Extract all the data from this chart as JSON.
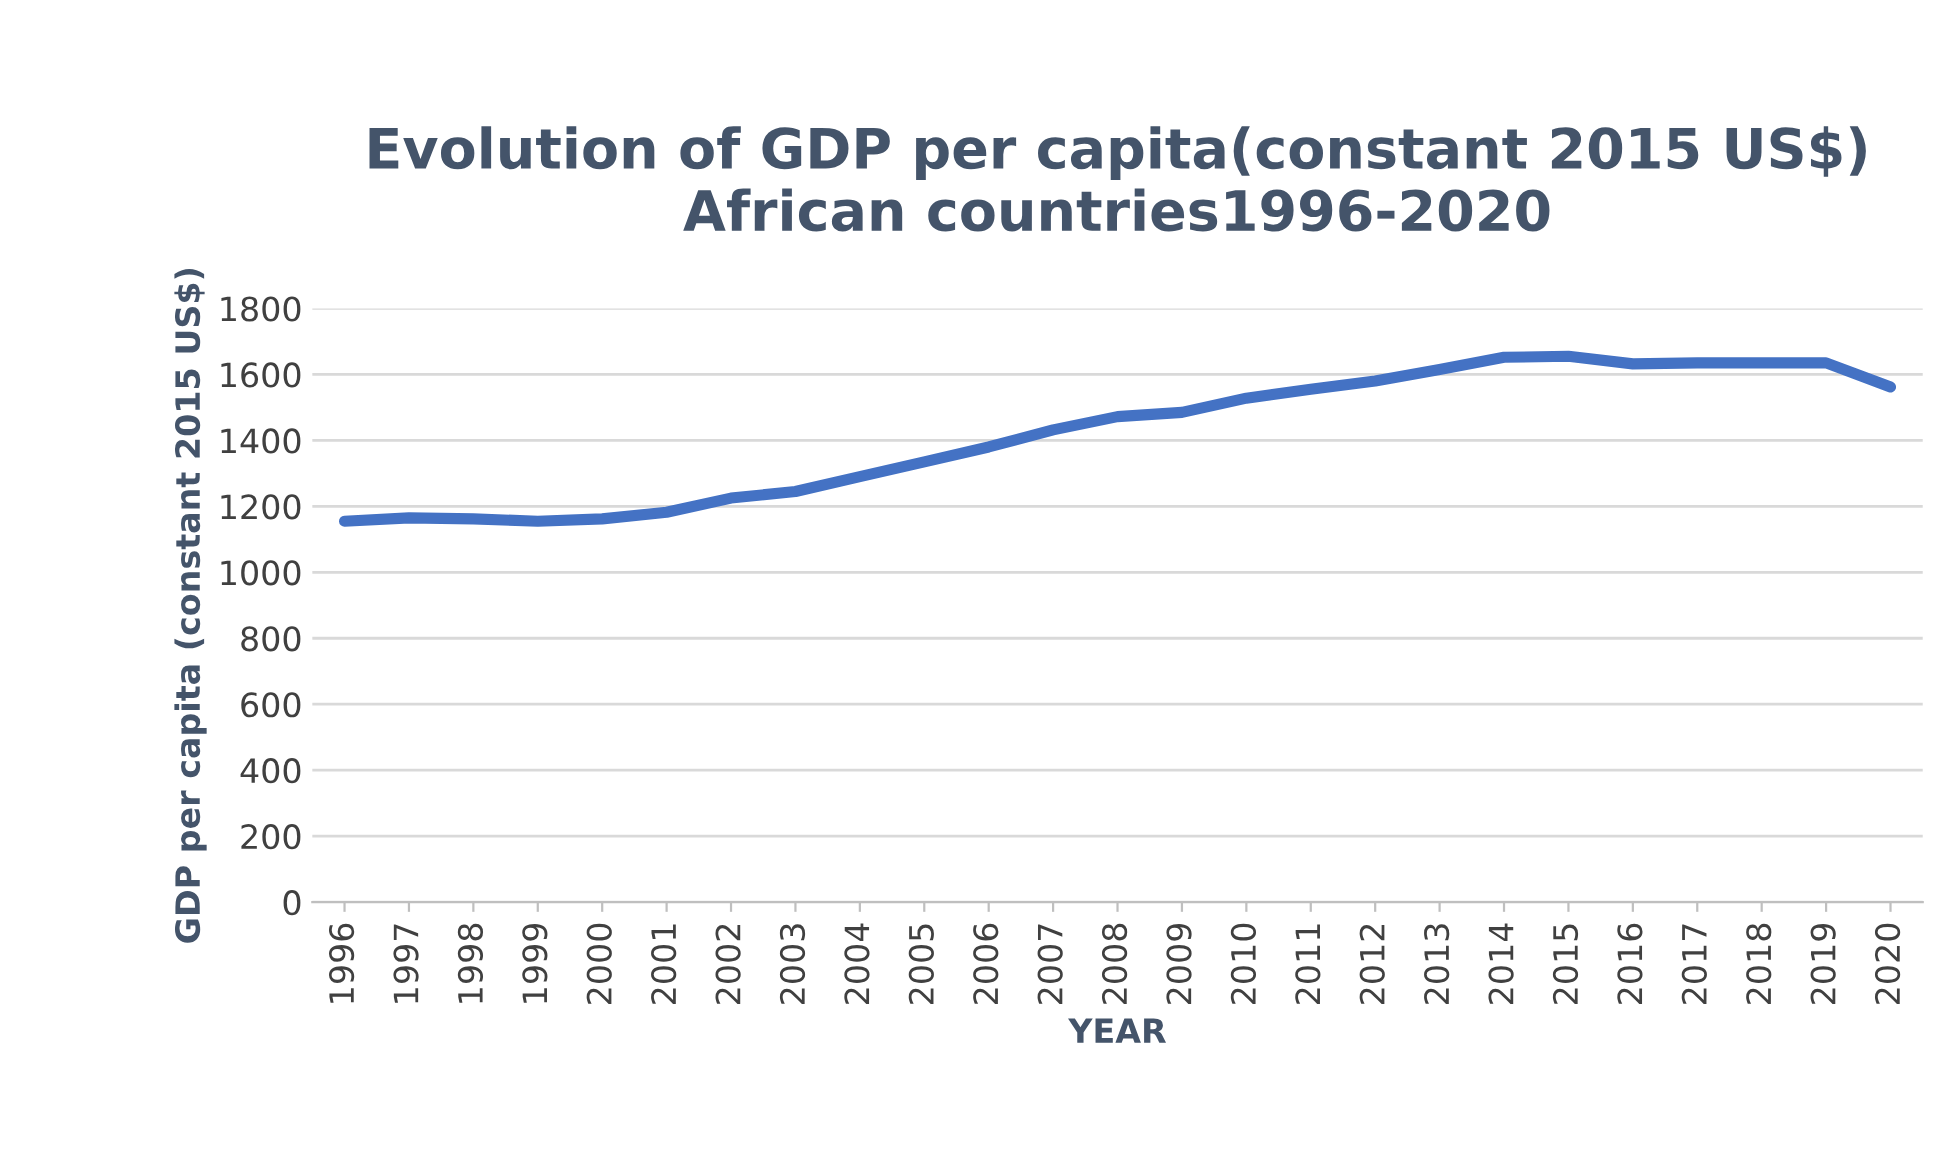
{
  "chart_data": {
    "type": "line",
    "title": "Evolution of GDP per capita(constant 2015 US$)\nAfrican countries1996-2020",
    "xlabel": "YEAR",
    "ylabel": "GDP per capita (constant 2015 US$)",
    "categories": [
      "1996",
      "1997",
      "1998",
      "1999",
      "2000",
      "2001",
      "2002",
      "2003",
      "2004",
      "2005",
      "2006",
      "2007",
      "2008",
      "2009",
      "2010",
      "2011",
      "2012",
      "2013",
      "2014",
      "2015",
      "2016",
      "2017",
      "2018",
      "2019",
      "2020"
    ],
    "series": [
      {
        "color": "#4472c4",
        "values": [
          1155,
          1165,
          1162,
          1155,
          1162,
          1182,
          1225,
          1245,
          1290,
          1335,
          1380,
          1432,
          1472,
          1485,
          1528,
          1555,
          1580,
          1615,
          1652,
          1655,
          1632,
          1635,
          1635,
          1635,
          1562
        ]
      }
    ],
    "ylim": [
      0,
      1800
    ],
    "yticks": [
      0,
      200,
      400,
      600,
      800,
      1000,
      1200,
      1400,
      1600,
      1800
    ],
    "grid": "y",
    "marker": "none",
    "line_style": "solid"
  }
}
